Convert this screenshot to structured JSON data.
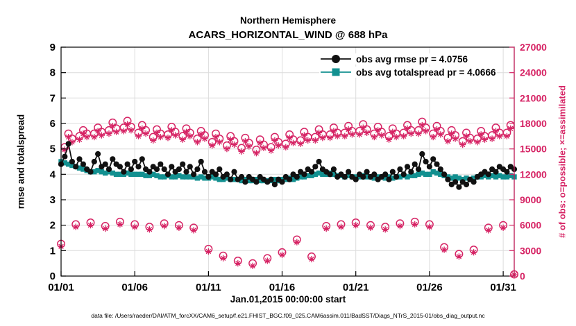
{
  "header": {
    "title_line1": "Northern Hemisphere",
    "title_line2": "ACARS_HORIZONTAL_WIND @ 688 hPa"
  },
  "footer": {
    "text": "data file: /Users/raeder/DAI/ATM_forcXX/CAM6_setup/f.e21.FHIST_BGC.f09_025.CAM6assim.011/BadSST/Diags_NTrS_2015-01/obs_diag_output.nc"
  },
  "chart_data": {
    "type": "line",
    "title": "Northern Hemisphere — ACARS_HORIZONTAL_WIND @ 688 hPa",
    "xlabel": "Jan.01,2015 00:00:00 start",
    "ylabel_left": "rmse and totalspread",
    "ylabel_right": "# of obs: o=possible; ×=assimilated",
    "ylim_left": [
      0,
      9
    ],
    "ylim_right": [
      0,
      27000
    ],
    "yticks_left": [
      0,
      1,
      2,
      3,
      4,
      5,
      6,
      7,
      8,
      9
    ],
    "yticks_right": [
      0,
      3000,
      6000,
      9000,
      12000,
      15000,
      18000,
      21000,
      24000,
      27000
    ],
    "x_domain_days": [
      0,
      30.75
    ],
    "xticks": [
      {
        "day": 0,
        "label": "01/01"
      },
      {
        "day": 5,
        "label": "01/06"
      },
      {
        "day": 10,
        "label": "01/11"
      },
      {
        "day": 15,
        "label": "01/16"
      },
      {
        "day": 20,
        "label": "01/21"
      },
      {
        "day": 25,
        "label": "01/26"
      },
      {
        "day": 30,
        "label": "01/31"
      }
    ],
    "t_start": 0,
    "t_step_days": 0.25,
    "grid": true,
    "legend_position": "top-right-inside",
    "legend": [
      {
        "label": "obs avg rmse pr = 4.0756",
        "marker": "filled-circle",
        "color": "#111111"
      },
      {
        "label": "obs avg totalspread pr = 4.0666",
        "marker": "filled-square",
        "color": "#129090"
      }
    ],
    "colors": {
      "rmse": "#111111",
      "totalspread": "#129090",
      "obs": "#d62364",
      "grid": "#dcdcdc"
    },
    "series": {
      "rmse": [
        4.4,
        4.7,
        5.2,
        4.5,
        4.3,
        4.6,
        4.4,
        4.2,
        4.1,
        4.5,
        4.8,
        4.3,
        4.4,
        4.2,
        4.6,
        4.4,
        4.3,
        4.1,
        4.4,
        4.2,
        4.5,
        4.3,
        4.6,
        4.2,
        4.1,
        4.3,
        4.2,
        4.4,
        4.2,
        4.0,
        4.3,
        4.1,
        4.2,
        4.4,
        4.1,
        4.3,
        4.0,
        4.2,
        4.5,
        4.1,
        3.9,
        4.1,
        4.0,
        4.2,
        3.9,
        4.0,
        3.8,
        4.1,
        3.8,
        3.9,
        3.7,
        3.9,
        3.8,
        3.7,
        3.9,
        3.8,
        3.7,
        3.8,
        3.6,
        3.8,
        3.7,
        3.9,
        3.8,
        4.0,
        3.9,
        4.1,
        4.0,
        4.2,
        4.1,
        4.3,
        4.5,
        4.2,
        4.1,
        4.0,
        4.2,
        3.9,
        4.0,
        3.9,
        4.1,
        3.9,
        3.8,
        4.0,
        3.9,
        4.1,
        3.9,
        4.0,
        3.8,
        3.9,
        4.0,
        3.8,
        4.1,
        3.9,
        4.2,
        4.0,
        4.3,
        4.1,
        4.4,
        4.2,
        4.8,
        4.5,
        4.3,
        4.6,
        4.4,
        4.2,
        4.0,
        3.8,
        3.6,
        3.7,
        3.5,
        3.7,
        3.6,
        3.8,
        3.7,
        3.9,
        4.0,
        4.1,
        4.0,
        4.2,
        4.1,
        4.3,
        4.2,
        4.1,
        4.3,
        4.2
      ],
      "totalspread": [
        4.5,
        4.45,
        4.4,
        4.35,
        4.3,
        4.25,
        4.2,
        4.15,
        4.1,
        4.1,
        4.15,
        4.1,
        4.05,
        4.1,
        4.05,
        4.0,
        4.0,
        4.0,
        4.05,
        4.0,
        4.0,
        4.0,
        4.0,
        3.95,
        3.95,
        4.0,
        3.95,
        3.9,
        3.9,
        3.95,
        3.9,
        3.9,
        3.95,
        3.9,
        3.9,
        3.9,
        3.9,
        3.85,
        3.9,
        3.85,
        3.85,
        3.9,
        3.85,
        3.8,
        3.8,
        3.85,
        3.8,
        3.8,
        3.8,
        3.75,
        3.8,
        3.75,
        3.75,
        3.8,
        3.75,
        3.75,
        3.75,
        3.75,
        3.8,
        3.75,
        3.8,
        3.8,
        3.85,
        3.8,
        3.85,
        3.9,
        3.9,
        3.95,
        3.95,
        4.0,
        4.05,
        4.0,
        4.0,
        4.05,
        4.0,
        3.95,
        3.95,
        3.9,
        3.95,
        3.9,
        3.9,
        3.9,
        3.95,
        3.9,
        3.9,
        3.85,
        3.9,
        3.9,
        3.85,
        3.9,
        3.85,
        3.9,
        3.9,
        3.95,
        3.9,
        3.95,
        3.95,
        4.0,
        4.05,
        4.0,
        4.0,
        4.1,
        4.05,
        4.0,
        3.95,
        3.9,
        3.85,
        3.9,
        3.85,
        3.8,
        3.85,
        3.8,
        3.85,
        3.9,
        3.9,
        3.95,
        3.9,
        3.95,
        3.9,
        3.95,
        3.9,
        3.9,
        3.95,
        3.9
      ],
      "possible": [
        3800,
        15200,
        16800,
        16200,
        6100,
        16500,
        17200,
        16800,
        6300,
        16800,
        17500,
        17000,
        5900,
        17200,
        18100,
        17400,
        6400,
        17500,
        18300,
        17600,
        6100,
        16900,
        17800,
        17200,
        5800,
        16400,
        17300,
        16800,
        6200,
        16700,
        17600,
        17000,
        6000,
        16500,
        17400,
        16900,
        5700,
        16200,
        17100,
        16600,
        3200,
        15800,
        16800,
        16200,
        2400,
        15400,
        16500,
        15900,
        1800,
        15100,
        16300,
        15700,
        1500,
        14900,
        16100,
        15500,
        2100,
        15200,
        16400,
        15800,
        2800,
        15600,
        16700,
        16100,
        4300,
        16000,
        17000,
        16400,
        2300,
        16400,
        17300,
        16700,
        5900,
        16700,
        17500,
        16900,
        6100,
        16900,
        17700,
        17100,
        6300,
        17100,
        17900,
        17300,
        6000,
        16800,
        17600,
        17000,
        5800,
        16500,
        17400,
        16800,
        6200,
        16900,
        17800,
        17200,
        6400,
        17200,
        18200,
        17500,
        6100,
        16800,
        17700,
        17100,
        3400,
        16300,
        17200,
        16600,
        2600,
        15900,
        16900,
        16300,
        3100,
        16200,
        17100,
        16500,
        5700,
        16600,
        17500,
        16900,
        6000,
        16900,
        17800,
        200
      ],
      "assimilated": [
        3500,
        14900,
        16400,
        15800,
        5800,
        16100,
        16800,
        16400,
        6000,
        16400,
        17100,
        16600,
        5600,
        16800,
        17700,
        17000,
        6100,
        17100,
        17900,
        17200,
        5800,
        16500,
        17400,
        16800,
        5500,
        16000,
        16900,
        16400,
        5900,
        16300,
        17200,
        16600,
        5700,
        16100,
        17000,
        16500,
        5400,
        15800,
        16700,
        16200,
        2900,
        15400,
        16400,
        15800,
        2100,
        15000,
        16100,
        15500,
        1500,
        14700,
        15900,
        15300,
        1200,
        14500,
        15700,
        15100,
        1800,
        14800,
        16000,
        15400,
        2500,
        15200,
        16300,
        15700,
        4000,
        15600,
        16600,
        16000,
        2000,
        16000,
        16900,
        16300,
        5600,
        16300,
        17100,
        16500,
        5800,
        16500,
        17300,
        16700,
        6000,
        16700,
        17500,
        16900,
        5700,
        16400,
        17200,
        16600,
        5500,
        16100,
        17000,
        16400,
        5900,
        16500,
        17400,
        16800,
        6100,
        16800,
        17800,
        17100,
        5800,
        16400,
        17300,
        16700,
        3100,
        15900,
        16800,
        16200,
        2300,
        15500,
        16500,
        15900,
        2800,
        15800,
        16700,
        16100,
        5400,
        16200,
        17100,
        16500,
        5700,
        16500,
        17400,
        150
      ]
    }
  }
}
